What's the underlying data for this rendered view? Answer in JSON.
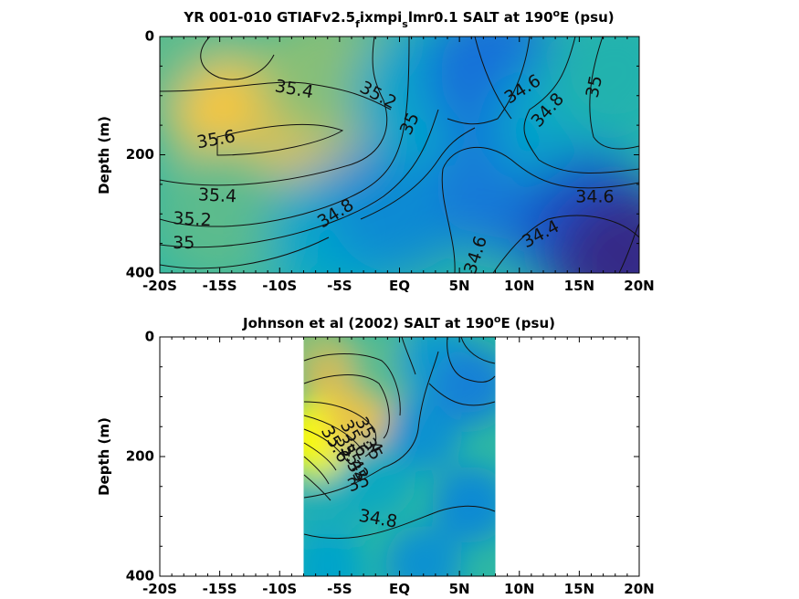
{
  "chart_data": [
    {
      "type": "heatmap",
      "title_main": "YR 001-010 GTIAFv2.5",
      "title_sub1": "f",
      "title_mid": "ixmpi",
      "title_sub2": "s",
      "title_rest": "lmr0.1 SALT at 190",
      "title_sup": "o",
      "title_end": "E (psu)",
      "ylabel": "Depth (m)",
      "xlim": [
        -20,
        20
      ],
      "ylim": [
        0,
        400
      ],
      "y_inverted": true,
      "x_ticks": [
        {
          "v": -20,
          "label": "-20S"
        },
        {
          "v": -15,
          "label": "-15S"
        },
        {
          "v": -10,
          "label": "-10S"
        },
        {
          "v": -5,
          "label": "-5S"
        },
        {
          "v": 0,
          "label": "EQ"
        },
        {
          "v": 5,
          "label": "5N"
        },
        {
          "v": 10,
          "label": "10N"
        },
        {
          "v": 15,
          "label": "15N"
        },
        {
          "v": 20,
          "label": "20N"
        }
      ],
      "y_ticks": [
        {
          "v": 0,
          "label": "0"
        },
        {
          "v": 200,
          "label": "200"
        },
        {
          "v": 400,
          "label": "400"
        }
      ],
      "data_x_extent": [
        -20,
        20
      ],
      "colorscale": "parula",
      "colorscale_range": [
        34.3,
        35.9
      ],
      "field_samples": [
        {
          "x": -18,
          "y": 40,
          "value": 35.2
        },
        {
          "x": -13,
          "y": 160,
          "value": 35.7
        },
        {
          "x": -8,
          "y": 160,
          "value": 35.6
        },
        {
          "x": -6,
          "y": 60,
          "value": 35.3
        },
        {
          "x": -15,
          "y": 300,
          "value": 35.2
        },
        {
          "x": -5,
          "y": 330,
          "value": 34.9
        },
        {
          "x": 0,
          "y": 280,
          "value": 34.75
        },
        {
          "x": 2,
          "y": 100,
          "value": 34.9
        },
        {
          "x": 8,
          "y": 60,
          "value": 34.6
        },
        {
          "x": 9,
          "y": 250,
          "value": 34.65
        },
        {
          "x": 14,
          "y": 150,
          "value": 34.9
        },
        {
          "x": 18,
          "y": 60,
          "value": 35.05
        },
        {
          "x": 16,
          "y": 320,
          "value": 34.45
        },
        {
          "x": 19,
          "y": 380,
          "value": 34.3
        }
      ],
      "contour_labels": [
        {
          "text": "35.4",
          "x": -8.8,
          "y": 90,
          "angle": 10
        },
        {
          "text": "35.2",
          "x": -1.8,
          "y": 100,
          "angle": 28
        },
        {
          "text": "35",
          "x": 0.9,
          "y": 148,
          "angle": -65
        },
        {
          "text": "35.6",
          "x": -15.3,
          "y": 175,
          "angle": -10
        },
        {
          "text": "35.4",
          "x": -15.2,
          "y": 270,
          "angle": 3
        },
        {
          "text": "35.2",
          "x": -17.3,
          "y": 310,
          "angle": 3
        },
        {
          "text": "35",
          "x": -18,
          "y": 350,
          "angle": 0
        },
        {
          "text": "34.8",
          "x": -5.3,
          "y": 300,
          "angle": -32
        },
        {
          "text": "34.6",
          "x": 6.4,
          "y": 370,
          "angle": -72
        },
        {
          "text": "34.6",
          "x": 10.3,
          "y": 90,
          "angle": -32
        },
        {
          "text": "34.8",
          "x": 12.4,
          "y": 125,
          "angle": -48
        },
        {
          "text": "35",
          "x": 16.3,
          "y": 85,
          "angle": -78
        },
        {
          "text": "34.6",
          "x": 16.3,
          "y": 272,
          "angle": 0
        },
        {
          "text": "34.4",
          "x": 11.8,
          "y": 335,
          "angle": -28
        }
      ]
    },
    {
      "type": "heatmap",
      "title_main": "Johnson et al (2002) SALT at 190",
      "title_sup": "o",
      "title_end": "E (psu)",
      "ylabel": "Depth (m)",
      "xlim": [
        -20,
        20
      ],
      "ylim": [
        0,
        400
      ],
      "y_inverted": true,
      "x_ticks": [
        {
          "v": -20,
          "label": "-20S"
        },
        {
          "v": -15,
          "label": "-15S"
        },
        {
          "v": -10,
          "label": "-10S"
        },
        {
          "v": -5,
          "label": "-5S"
        },
        {
          "v": 0,
          "label": "EQ"
        },
        {
          "v": 5,
          "label": "5N"
        },
        {
          "v": 10,
          "label": "10N"
        },
        {
          "v": 15,
          "label": "15N"
        },
        {
          "v": 20,
          "label": "20N"
        }
      ],
      "y_ticks": [
        {
          "v": 0,
          "label": "0"
        },
        {
          "v": 200,
          "label": "200"
        },
        {
          "v": 400,
          "label": "400"
        }
      ],
      "data_x_extent": [
        -8,
        8
      ],
      "colorscale": "parula",
      "colorscale_range": [
        34.3,
        35.9
      ],
      "field_samples": [
        {
          "x": -7,
          "y": 20,
          "value": 35.3
        },
        {
          "x": -5,
          "y": 80,
          "value": 35.5
        },
        {
          "x": -7,
          "y": 170,
          "value": 35.95
        },
        {
          "x": -3,
          "y": 140,
          "value": 35.6
        },
        {
          "x": -1,
          "y": 50,
          "value": 35.2
        },
        {
          "x": -6,
          "y": 300,
          "value": 35.0
        },
        {
          "x": -2,
          "y": 240,
          "value": 34.95
        },
        {
          "x": 2,
          "y": 160,
          "value": 34.8
        },
        {
          "x": 3,
          "y": 40,
          "value": 34.85
        },
        {
          "x": 6,
          "y": 80,
          "value": 34.7
        },
        {
          "x": 6,
          "y": 280,
          "value": 34.75
        },
        {
          "x": 2,
          "y": 380,
          "value": 34.8
        },
        {
          "x": -6,
          "y": 390,
          "value": 34.9
        }
      ],
      "contour_labels": [
        {
          "text": "35.6",
          "x": -3.8,
          "y": 170,
          "angle": 60
        },
        {
          "text": "35.4",
          "x": -2.6,
          "y": 165,
          "angle": 62
        },
        {
          "text": "35.6",
          "x": -5.4,
          "y": 180,
          "angle": 60
        },
        {
          "text": "35",
          "x": -2.3,
          "y": 188,
          "angle": 62
        },
        {
          "text": "35.2",
          "x": -3.8,
          "y": 210,
          "angle": 60
        },
        {
          "text": "35.4",
          "x": -4.2,
          "y": 195,
          "angle": 60
        },
        {
          "text": "35",
          "x": -3.6,
          "y": 225,
          "angle": 60
        },
        {
          "text": "35",
          "x": -3.4,
          "y": 245,
          "angle": -20
        },
        {
          "text": "34.8",
          "x": -1.8,
          "y": 305,
          "angle": 10
        }
      ]
    }
  ]
}
